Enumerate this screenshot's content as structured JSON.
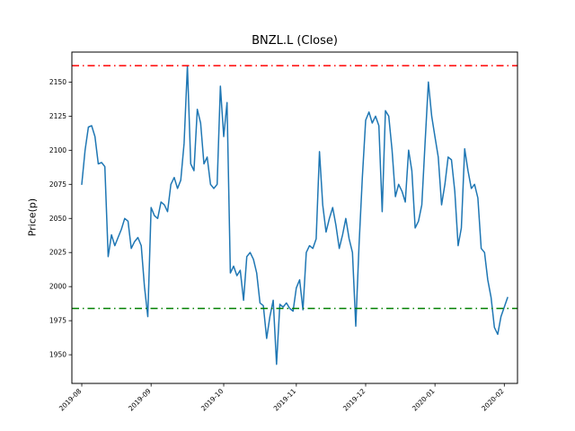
{
  "figure": {
    "background": "#ffffff"
  },
  "chart_data": {
    "type": "line",
    "title": "BNZL.L (Close)",
    "xlabel": "",
    "ylabel": "Price(p)",
    "ylim": [
      1929,
      2172
    ],
    "y_ticks": [
      1950,
      1975,
      2000,
      2025,
      2050,
      2075,
      2100,
      2125,
      2150
    ],
    "x_tick_labels": [
      "2019-08",
      "2019-09",
      "2019-10",
      "2019-11",
      "2019-12",
      "2020-01",
      "2020-02"
    ],
    "x_tick_indices": [
      0,
      21,
      43,
      65,
      86,
      107,
      128
    ],
    "grid": false,
    "legend": "none",
    "series": [
      {
        "name": "Close",
        "color": "#1f77b4",
        "values": [
          2075,
          2100,
          2117,
          2118,
          2110,
          2090,
          2091,
          2088,
          2022,
          2038,
          2030,
          2036,
          2042,
          2050,
          2048,
          2028,
          2033,
          2036,
          2030,
          2000,
          1978,
          2058,
          2052,
          2050,
          2062,
          2060,
          2055,
          2075,
          2080,
          2072,
          2078,
          2105,
          2162,
          2090,
          2085,
          2130,
          2120,
          2090,
          2095,
          2075,
          2072,
          2075,
          2147,
          2110,
          2135,
          2010,
          2015,
          2008,
          2012,
          1990,
          2022,
          2025,
          2020,
          2010,
          1988,
          1986,
          1962,
          1978,
          1990,
          1943,
          1987,
          1985,
          1988,
          1984,
          1982,
          1999,
          2005,
          1983,
          2025,
          2030,
          2028,
          2035,
          2099,
          2060,
          2040,
          2050,
          2058,
          2045,
          2028,
          2038,
          2050,
          2035,
          2025,
          1971,
          2030,
          2080,
          2122,
          2128,
          2120,
          2125,
          2118,
          2055,
          2129,
          2125,
          2100,
          2066,
          2075,
          2070,
          2062,
          2100,
          2085,
          2043,
          2048,
          2060,
          2105,
          2150,
          2125,
          2110,
          2095,
          2060,
          2075,
          2095,
          2093,
          2070,
          2030,
          2043,
          2101,
          2085,
          2072,
          2075,
          2065,
          2028,
          2025,
          2005,
          1992,
          1970,
          1965,
          1978,
          1985,
          1992
        ]
      }
    ],
    "reference_lines": [
      {
        "name": "upper-threshold",
        "value": 2162,
        "color": "#ff0000",
        "style": "dashdot"
      },
      {
        "name": "lower-threshold",
        "value": 1984,
        "color": "#008000",
        "style": "dashdot"
      }
    ]
  }
}
